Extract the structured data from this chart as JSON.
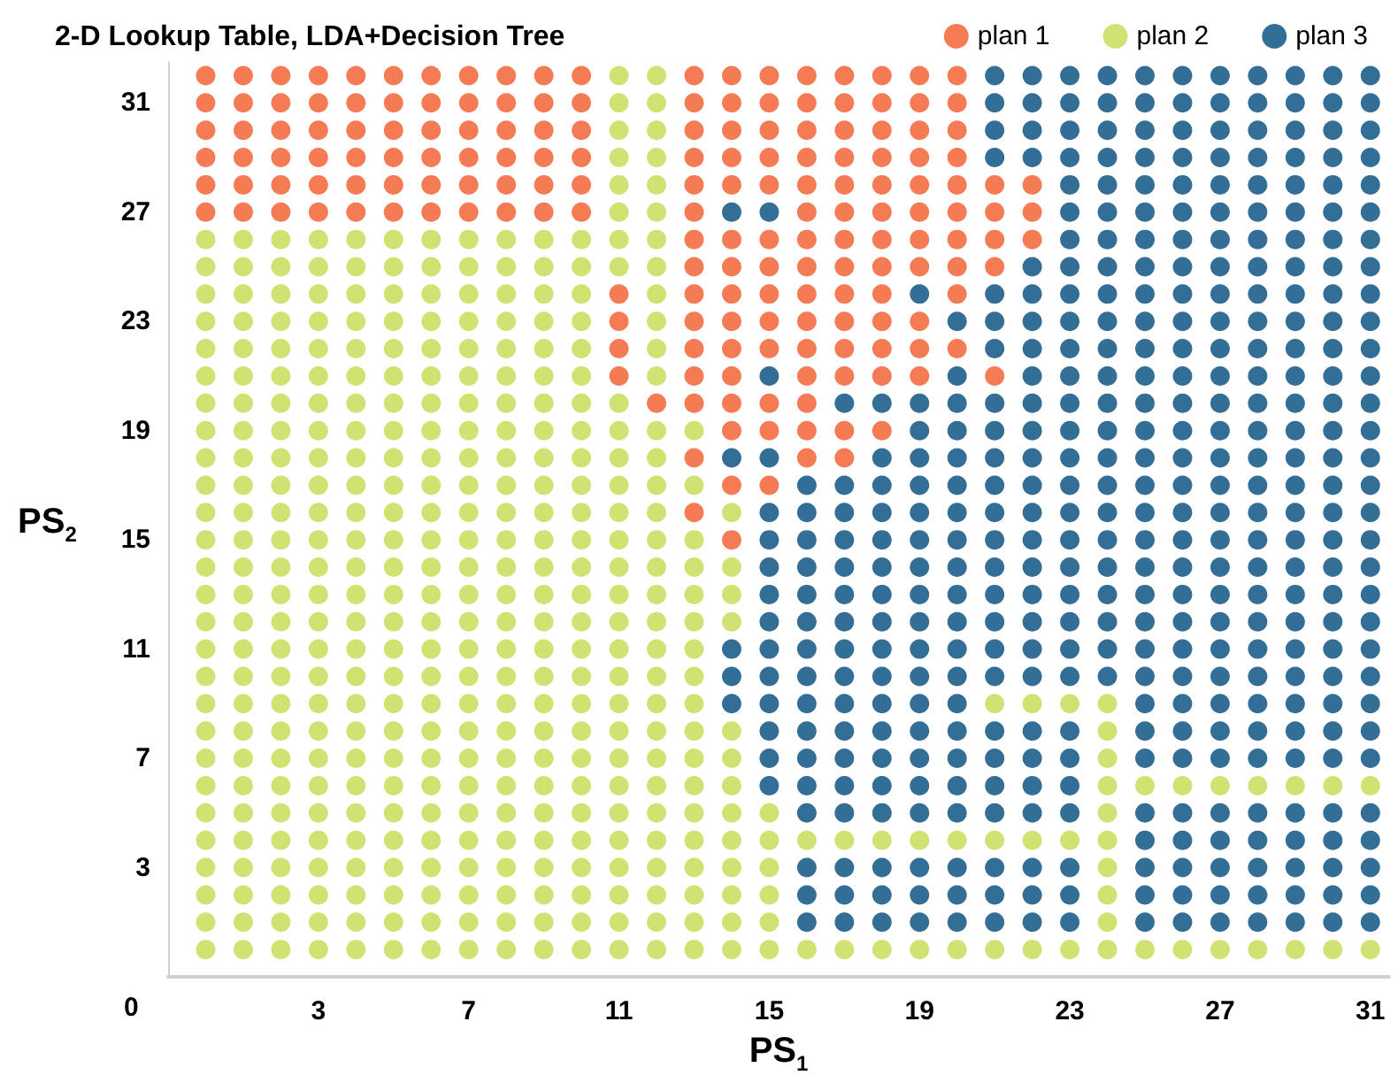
{
  "chart_data": {
    "type": "scatter",
    "title": "2-D Lookup Table, LDA+Decision Tree",
    "xlabel": "PS$_{1}$",
    "ylabel": "PS$_{2}$",
    "xlim": [
      -1,
      31.5
    ],
    "ylim": [
      -1,
      32.5
    ],
    "xticks": [
      3,
      7,
      11,
      15,
      19,
      23,
      27,
      31
    ],
    "yticks": [
      3,
      7,
      11,
      15,
      19,
      23,
      27,
      31
    ],
    "annotations": [
      "0"
    ],
    "legend": "top right",
    "marker": "circle",
    "series": [
      {
        "name": "plan 1",
        "color": "#f15a29",
        "x": [
          0,
          1,
          2,
          3,
          4,
          5,
          6,
          7,
          8,
          9,
          10,
          13,
          14,
          15,
          16,
          17,
          18,
          19,
          20,
          0,
          1,
          2,
          3,
          4,
          5,
          6,
          7,
          8,
          9,
          10,
          13,
          14,
          15,
          16,
          17,
          18,
          19,
          20,
          0,
          1,
          2,
          3,
          4,
          5,
          6,
          7,
          8,
          9,
          10,
          13,
          14,
          15,
          16,
          17,
          18,
          19,
          20,
          0,
          1,
          2,
          3,
          4,
          5,
          6,
          7,
          8,
          9,
          10,
          13,
          14,
          15,
          16,
          17,
          18,
          19,
          20,
          0,
          1,
          2,
          3,
          4,
          5,
          6,
          7,
          8,
          9,
          10,
          13,
          14,
          15,
          16,
          17,
          18,
          19,
          20,
          21,
          22,
          0,
          1,
          2,
          3,
          4,
          5,
          6,
          7,
          8,
          9,
          10,
          13,
          16,
          17,
          18,
          19,
          20,
          21,
          22,
          13,
          14,
          15,
          16,
          17,
          18,
          19,
          20,
          21,
          22,
          13,
          14,
          15,
          16,
          17,
          18,
          19,
          20,
          21,
          11,
          13,
          14,
          15,
          16,
          17,
          18,
          20,
          11,
          13,
          14,
          15,
          16,
          17,
          18,
          19,
          11,
          13,
          14,
          15,
          16,
          17,
          18,
          19,
          20,
          11,
          13,
          14,
          16,
          17,
          18,
          19,
          21,
          12,
          13,
          14,
          15,
          16,
          14,
          15,
          16,
          17,
          18,
          13,
          16,
          17,
          14,
          15,
          13,
          14
        ],
        "values": [
          32,
          32,
          32,
          32,
          32,
          32,
          32,
          32,
          32,
          32,
          32,
          32,
          32,
          32,
          32,
          32,
          32,
          32,
          32,
          31,
          31,
          31,
          31,
          31,
          31,
          31,
          31,
          31,
          31,
          31,
          31,
          31,
          31,
          31,
          31,
          31,
          31,
          31,
          30,
          30,
          30,
          30,
          30,
          30,
          30,
          30,
          30,
          30,
          30,
          30,
          30,
          30,
          30,
          30,
          30,
          30,
          30,
          29,
          29,
          29,
          29,
          29,
          29,
          29,
          29,
          29,
          29,
          29,
          29,
          29,
          29,
          29,
          29,
          29,
          29,
          29,
          28,
          28,
          28,
          28,
          28,
          28,
          28,
          28,
          28,
          28,
          28,
          28,
          28,
          28,
          28,
          28,
          28,
          28,
          28,
          28,
          28,
          27,
          27,
          27,
          27,
          27,
          27,
          27,
          27,
          27,
          27,
          27,
          27,
          27,
          27,
          27,
          27,
          27,
          27,
          27,
          26,
          26,
          26,
          26,
          26,
          26,
          26,
          26,
          26,
          26,
          25,
          25,
          25,
          25,
          25,
          25,
          25,
          25,
          25,
          24,
          24,
          24,
          24,
          24,
          24,
          24,
          24,
          23,
          23,
          23,
          23,
          23,
          23,
          23,
          23,
          22,
          22,
          22,
          22,
          22,
          22,
          22,
          22,
          22,
          21,
          21,
          21,
          21,
          21,
          21,
          21,
          21,
          20,
          20,
          20,
          20,
          20,
          19,
          19,
          19,
          19,
          19,
          18,
          18,
          18,
          17,
          17,
          16,
          15
        ]
      },
      {
        "name": "plan 2",
        "color": "#c5d94f",
        "x": [
          11,
          12,
          11,
          12,
          11,
          12,
          11,
          12,
          11,
          12,
          11,
          12,
          0,
          1,
          2,
          3,
          4,
          5,
          6,
          7,
          8,
          9,
          10,
          11,
          12,
          0,
          1,
          2,
          3,
          4,
          5,
          6,
          7,
          8,
          9,
          10,
          11,
          12,
          0,
          1,
          2,
          3,
          4,
          5,
          6,
          7,
          8,
          9,
          10,
          12,
          0,
          1,
          2,
          3,
          4,
          5,
          6,
          7,
          8,
          9,
          10,
          12,
          0,
          1,
          2,
          3,
          4,
          5,
          6,
          7,
          8,
          9,
          10,
          12,
          0,
          1,
          2,
          3,
          4,
          5,
          6,
          7,
          8,
          9,
          10,
          12,
          0,
          1,
          2,
          3,
          4,
          5,
          6,
          7,
          8,
          9,
          10,
          11,
          0,
          1,
          2,
          3,
          4,
          5,
          6,
          7,
          8,
          9,
          10,
          11,
          12,
          13,
          0,
          1,
          2,
          3,
          4,
          5,
          6,
          7,
          8,
          9,
          10,
          11,
          12,
          0,
          1,
          2,
          3,
          4,
          5,
          6,
          7,
          8,
          9,
          10,
          11,
          12,
          13,
          0,
          1,
          2,
          3,
          4,
          5,
          6,
          7,
          8,
          9,
          10,
          11,
          12,
          14,
          0,
          1,
          2,
          3,
          4,
          5,
          6,
          7,
          8,
          9,
          10,
          11,
          12,
          13,
          0,
          1,
          2,
          3,
          4,
          5,
          6,
          7,
          8,
          9,
          10,
          11,
          12,
          13,
          14,
          0,
          1,
          2,
          3,
          4,
          5,
          6,
          7,
          8,
          9,
          10,
          11,
          12,
          13,
          14,
          0,
          1,
          2,
          3,
          4,
          5,
          6,
          7,
          8,
          9,
          10,
          11,
          12,
          13,
          14,
          0,
          1,
          2,
          3,
          4,
          5,
          6,
          7,
          8,
          9,
          10,
          11,
          12,
          13,
          0,
          1,
          2,
          3,
          4,
          5,
          6,
          7,
          8,
          9,
          10,
          11,
          12,
          13,
          0,
          1,
          2,
          3,
          4,
          5,
          6,
          7,
          8,
          9,
          10,
          11,
          12,
          13,
          21,
          22,
          23,
          24,
          0,
          1,
          2,
          3,
          4,
          5,
          6,
          7,
          8,
          9,
          10,
          11,
          12,
          13,
          14,
          24,
          0,
          1,
          2,
          3,
          4,
          5,
          6,
          7,
          8,
          9,
          10,
          11,
          12,
          13,
          14,
          24,
          0,
          1,
          2,
          3,
          4,
          5,
          6,
          7,
          8,
          9,
          10,
          11,
          12,
          13,
          14,
          24,
          25,
          26,
          27,
          28,
          29,
          30,
          31,
          0,
          1,
          2,
          3,
          4,
          5,
          6,
          7,
          8,
          9,
          10,
          11,
          12,
          13,
          14,
          15,
          24,
          0,
          1,
          2,
          3,
          4,
          5,
          6,
          7,
          8,
          9,
          10,
          11,
          12,
          13,
          14,
          15,
          16,
          17,
          18,
          19,
          20,
          21,
          22,
          23,
          24,
          0,
          1,
          2,
          3,
          4,
          5,
          6,
          7,
          8,
          9,
          10,
          11,
          12,
          13,
          14,
          15,
          24,
          0,
          1,
          2,
          3,
          4,
          5,
          6,
          7,
          8,
          9,
          10,
          11,
          12,
          13,
          14,
          15,
          24,
          0,
          1,
          2,
          3,
          4,
          5,
          6,
          7,
          8,
          9,
          10,
          11,
          12,
          13,
          14,
          15,
          24,
          0,
          1,
          2,
          3,
          4,
          5,
          6,
          7,
          8,
          9,
          10,
          11,
          12,
          13,
          14,
          15,
          16,
          17,
          18,
          19,
          20,
          21,
          22,
          23,
          24,
          25,
          26,
          27,
          28,
          29,
          30,
          31
        ],
        "values": [
          32,
          32,
          31,
          31,
          30,
          30,
          29,
          29,
          28,
          28,
          27,
          27,
          26,
          26,
          26,
          26,
          26,
          26,
          26,
          26,
          26,
          26,
          26,
          26,
          26,
          25,
          25,
          25,
          25,
          25,
          25,
          25,
          25,
          25,
          25,
          25,
          25,
          25,
          24,
          24,
          24,
          24,
          24,
          24,
          24,
          24,
          24,
          24,
          24,
          24,
          23,
          23,
          23,
          23,
          23,
          23,
          23,
          23,
          23,
          23,
          23,
          23,
          22,
          22,
          22,
          22,
          22,
          22,
          22,
          22,
          22,
          22,
          22,
          22,
          21,
          21,
          21,
          21,
          21,
          21,
          21,
          21,
          21,
          21,
          21,
          21,
          20,
          20,
          20,
          20,
          20,
          20,
          20,
          20,
          20,
          20,
          20,
          20,
          19,
          19,
          19,
          19,
          19,
          19,
          19,
          19,
          19,
          19,
          19,
          19,
          19,
          19,
          18,
          18,
          18,
          18,
          18,
          18,
          18,
          18,
          18,
          18,
          18,
          18,
          18,
          17,
          17,
          17,
          17,
          17,
          17,
          17,
          17,
          17,
          17,
          17,
          17,
          17,
          17,
          16,
          16,
          16,
          16,
          16,
          16,
          16,
          16,
          16,
          16,
          16,
          16,
          16,
          16,
          15,
          15,
          15,
          15,
          15,
          15,
          15,
          15,
          15,
          15,
          15,
          15,
          15,
          15,
          14,
          14,
          14,
          14,
          14,
          14,
          14,
          14,
          14,
          14,
          14,
          14,
          14,
          14,
          14,
          13,
          13,
          13,
          13,
          13,
          13,
          13,
          13,
          13,
          13,
          13,
          13,
          13,
          13,
          13,
          12,
          12,
          12,
          12,
          12,
          12,
          12,
          12,
          12,
          12,
          12,
          12,
          12,
          12,
          12,
          11,
          11,
          11,
          11,
          11,
          11,
          11,
          11,
          11,
          11,
          11,
          11,
          11,
          11,
          10,
          10,
          10,
          10,
          10,
          10,
          10,
          10,
          10,
          10,
          10,
          10,
          10,
          10,
          9,
          9,
          9,
          9,
          9,
          9,
          9,
          9,
          9,
          9,
          9,
          9,
          9,
          9,
          9,
          9,
          9,
          9,
          8,
          8,
          8,
          8,
          8,
          8,
          8,
          8,
          8,
          8,
          8,
          8,
          8,
          8,
          8,
          8,
          7,
          7,
          7,
          7,
          7,
          7,
          7,
          7,
          7,
          7,
          7,
          7,
          7,
          7,
          7,
          7,
          6,
          6,
          6,
          6,
          6,
          6,
          6,
          6,
          6,
          6,
          6,
          6,
          6,
          6,
          6,
          6,
          6,
          6,
          6,
          6,
          6,
          6,
          6,
          5,
          5,
          5,
          5,
          5,
          5,
          5,
          5,
          5,
          5,
          5,
          5,
          5,
          5,
          5,
          5,
          5,
          4,
          4,
          4,
          4,
          4,
          4,
          4,
          4,
          4,
          4,
          4,
          4,
          4,
          4,
          4,
          4,
          4,
          4,
          4,
          4,
          4,
          4,
          4,
          4,
          4,
          3,
          3,
          3,
          3,
          3,
          3,
          3,
          3,
          3,
          3,
          3,
          3,
          3,
          3,
          3,
          3,
          3,
          2,
          2,
          2,
          2,
          2,
          2,
          2,
          2,
          2,
          2,
          2,
          2,
          2,
          2,
          2,
          2,
          2,
          1,
          1,
          1,
          1,
          1,
          1,
          1,
          1,
          1,
          1,
          1,
          1,
          1,
          1,
          1,
          1,
          1,
          0,
          0,
          0,
          0,
          0,
          0,
          0,
          0,
          0,
          0,
          0,
          0,
          0,
          0,
          0,
          0,
          0,
          0,
          0,
          0,
          0,
          0,
          0,
          0,
          0,
          0,
          0,
          0,
          0,
          0,
          0,
          0
        ]
      },
      {
        "name": "plan 3",
        "color": "#004a7c",
        "x": [
          21,
          22,
          23,
          24,
          25,
          26,
          27,
          28,
          29,
          30,
          31,
          21,
          22,
          23,
          24,
          25,
          26,
          27,
          28,
          29,
          30,
          31,
          21,
          22,
          23,
          24,
          25,
          26,
          27,
          28,
          29,
          30,
          31,
          21,
          22,
          23,
          24,
          25,
          26,
          27,
          28,
          29,
          30,
          31,
          23,
          24,
          25,
          26,
          27,
          28,
          29,
          30,
          31,
          14,
          15,
          23,
          24,
          25,
          26,
          27,
          28,
          29,
          30,
          31,
          23,
          24,
          25,
          26,
          27,
          28,
          29,
          30,
          31,
          22,
          23,
          24,
          25,
          26,
          27,
          28,
          29,
          30,
          31,
          19,
          21,
          22,
          23,
          24,
          25,
          26,
          27,
          28,
          29,
          30,
          31,
          20,
          21,
          22,
          23,
          24,
          25,
          26,
          27,
          28,
          29,
          30,
          31,
          21,
          22,
          23,
          24,
          25,
          26,
          27,
          28,
          29,
          30,
          31,
          15,
          20,
          22,
          23,
          24,
          25,
          26,
          27,
          28,
          29,
          30,
          31,
          17,
          18,
          19,
          20,
          21,
          22,
          23,
          24,
          25,
          26,
          27,
          28,
          29,
          30,
          31,
          19,
          20,
          21,
          22,
          23,
          24,
          25,
          26,
          27,
          28,
          29,
          30,
          31,
          14,
          15,
          18,
          19,
          20,
          21,
          22,
          23,
          24,
          25,
          26,
          27,
          28,
          29,
          30,
          31,
          16,
          17,
          18,
          19,
          20,
          21,
          22,
          23,
          24,
          25,
          26,
          27,
          28,
          29,
          30,
          31,
          15,
          16,
          17,
          18,
          19,
          20,
          21,
          22,
          23,
          24,
          25,
          26,
          27,
          28,
          29,
          30,
          31,
          15,
          16,
          17,
          18,
          19,
          20,
          21,
          22,
          23,
          24,
          25,
          26,
          27,
          28,
          29,
          30,
          31,
          15,
          16,
          17,
          18,
          19,
          20,
          21,
          22,
          23,
          24,
          25,
          26,
          27,
          28,
          29,
          30,
          31,
          15,
          16,
          17,
          18,
          19,
          20,
          21,
          22,
          23,
          24,
          25,
          26,
          27,
          28,
          29,
          30,
          31,
          15,
          16,
          17,
          18,
          19,
          20,
          21,
          22,
          23,
          24,
          25,
          26,
          27,
          28,
          29,
          30,
          31,
          14,
          15,
          16,
          17,
          18,
          19,
          20,
          21,
          22,
          23,
          24,
          25,
          26,
          27,
          28,
          29,
          30,
          31,
          14,
          15,
          16,
          17,
          18,
          19,
          20,
          21,
          22,
          23,
          24,
          25,
          26,
          27,
          28,
          29,
          30,
          31,
          14,
          15,
          16,
          17,
          18,
          19,
          20,
          25,
          26,
          27,
          28,
          29,
          30,
          31,
          15,
          16,
          17,
          18,
          19,
          20,
          21,
          22,
          23,
          25,
          26,
          27,
          28,
          29,
          30,
          31,
          15,
          16,
          17,
          18,
          19,
          20,
          21,
          22,
          23,
          25,
          26,
          27,
          28,
          29,
          30,
          31,
          15,
          16,
          17,
          18,
          19,
          20,
          21,
          22,
          23,
          16,
          17,
          18,
          19,
          20,
          21,
          22,
          23,
          25,
          26,
          27,
          28,
          29,
          30,
          31,
          25,
          26,
          27,
          28,
          29,
          30,
          31,
          16,
          17,
          18,
          19,
          20,
          21,
          22,
          23,
          25,
          26,
          27,
          28,
          29,
          30,
          31,
          16,
          17,
          18,
          19,
          20,
          21,
          22,
          23,
          25,
          26,
          27,
          28,
          29,
          30,
          31,
          16,
          17,
          18,
          19,
          20,
          21,
          22,
          23,
          25,
          26,
          27,
          28,
          29,
          30,
          31
        ],
        "values": [
          32,
          32,
          32,
          32,
          32,
          32,
          32,
          32,
          32,
          32,
          32,
          31,
          31,
          31,
          31,
          31,
          31,
          31,
          31,
          31,
          31,
          31,
          30,
          30,
          30,
          30,
          30,
          30,
          30,
          30,
          30,
          30,
          30,
          29,
          29,
          29,
          29,
          29,
          29,
          29,
          29,
          29,
          29,
          29,
          28,
          28,
          28,
          28,
          28,
          28,
          28,
          28,
          28,
          27,
          27,
          27,
          27,
          27,
          27,
          27,
          27,
          27,
          27,
          27,
          26,
          26,
          26,
          26,
          26,
          26,
          26,
          26,
          26,
          25,
          25,
          25,
          25,
          25,
          25,
          25,
          25,
          25,
          25,
          24,
          24,
          24,
          24,
          24,
          24,
          24,
          24,
          24,
          24,
          24,
          24,
          23,
          23,
          23,
          23,
          23,
          23,
          23,
          23,
          23,
          23,
          23,
          23,
          22,
          22,
          22,
          22,
          22,
          22,
          22,
          22,
          22,
          22,
          22,
          21,
          21,
          21,
          21,
          21,
          21,
          21,
          21,
          21,
          21,
          21,
          21,
          20,
          20,
          20,
          20,
          20,
          20,
          20,
          20,
          20,
          20,
          20,
          20,
          20,
          20,
          20,
          19,
          19,
          19,
          19,
          19,
          19,
          19,
          19,
          19,
          19,
          19,
          19,
          19,
          18,
          18,
          18,
          18,
          18,
          18,
          18,
          18,
          18,
          18,
          18,
          18,
          18,
          18,
          18,
          18,
          17,
          17,
          17,
          17,
          17,
          17,
          17,
          17,
          17,
          17,
          17,
          17,
          17,
          17,
          17,
          17,
          16,
          16,
          16,
          16,
          16,
          16,
          16,
          16,
          16,
          16,
          16,
          16,
          16,
          16,
          16,
          16,
          16,
          15,
          15,
          15,
          15,
          15,
          15,
          15,
          15,
          15,
          15,
          15,
          15,
          15,
          15,
          15,
          15,
          15,
          14,
          14,
          14,
          14,
          14,
          14,
          14,
          14,
          14,
          14,
          14,
          14,
          14,
          14,
          14,
          14,
          14,
          13,
          13,
          13,
          13,
          13,
          13,
          13,
          13,
          13,
          13,
          13,
          13,
          13,
          13,
          13,
          13,
          13,
          12,
          12,
          12,
          12,
          12,
          12,
          12,
          12,
          12,
          12,
          12,
          12,
          12,
          12,
          12,
          12,
          12,
          11,
          11,
          11,
          11,
          11,
          11,
          11,
          11,
          11,
          11,
          11,
          11,
          11,
          11,
          11,
          11,
          11,
          11,
          10,
          10,
          10,
          10,
          10,
          10,
          10,
          10,
          10,
          10,
          10,
          10,
          10,
          10,
          10,
          10,
          10,
          10,
          9,
          9,
          9,
          9,
          9,
          9,
          9,
          9,
          9,
          9,
          9,
          9,
          9,
          9,
          8,
          8,
          8,
          8,
          8,
          8,
          8,
          8,
          8,
          8,
          8,
          8,
          8,
          8,
          8,
          8,
          7,
          7,
          7,
          7,
          7,
          7,
          7,
          7,
          7,
          7,
          7,
          7,
          7,
          7,
          7,
          7,
          6,
          6,
          6,
          6,
          6,
          6,
          6,
          6,
          6,
          5,
          5,
          5,
          5,
          5,
          5,
          5,
          5,
          5,
          5,
          5,
          5,
          5,
          5,
          5,
          4,
          4,
          4,
          4,
          4,
          4,
          4,
          3,
          3,
          3,
          3,
          3,
          3,
          3,
          3,
          3,
          3,
          3,
          3,
          3,
          3,
          3,
          2,
          2,
          2,
          2,
          2,
          2,
          2,
          2,
          2,
          2,
          2,
          2,
          2,
          2,
          2,
          1,
          1,
          1,
          1,
          1,
          1,
          1,
          1,
          1,
          1,
          1,
          1,
          1,
          1,
          1
        ]
      }
    ]
  }
}
